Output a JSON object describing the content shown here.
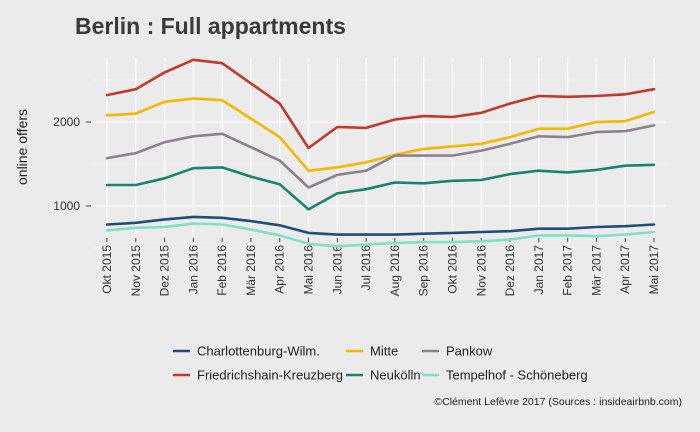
{
  "chart_data": {
    "type": "line",
    "title": "Berlin : Full appartments",
    "xlabel": "",
    "ylabel": "online offers",
    "ylim": [
      0,
      2800
    ],
    "yticks": [
      1000,
      2000
    ],
    "grid": true,
    "legend_position": "bottom",
    "categories": [
      "Okt 2015",
      "Nov 2015",
      "Dez 2015",
      "Jan 2016",
      "Feb 2016",
      "Mär 2016",
      "Apr 2016",
      "Mai 2016",
      "Jun 2016",
      "Jul 2016",
      "Aug 2016",
      "Sep 2016",
      "Okt 2016",
      "Nov 2016",
      "Dez 2016",
      "Jan 2017",
      "Feb 2017",
      "Mär 2017",
      "Apr 2017",
      "Mai 2017"
    ],
    "series": [
      {
        "name": "Charlottenburg-Wilm.",
        "color": "#1f4e79",
        "values": [
          780,
          800,
          840,
          870,
          860,
          820,
          770,
          680,
          660,
          660,
          660,
          670,
          680,
          690,
          700,
          730,
          730,
          750,
          760,
          780
        ]
      },
      {
        "name": "Mitte",
        "color": "#f5b800",
        "values": [
          2080,
          2100,
          2240,
          2280,
          2260,
          2040,
          1820,
          1420,
          1460,
          1520,
          1610,
          1680,
          1710,
          1740,
          1820,
          1920,
          1920,
          2000,
          2010,
          2120
        ]
      },
      {
        "name": "Pankow",
        "color": "#8d8190",
        "values": [
          1570,
          1630,
          1760,
          1830,
          1860,
          1700,
          1540,
          1220,
          1370,
          1420,
          1600,
          1600,
          1600,
          1660,
          1740,
          1830,
          1820,
          1880,
          1890,
          1960
        ]
      },
      {
        "name": "Friedrichshain-Kreuzberg",
        "color": "#c0392b",
        "values": [
          2320,
          2390,
          2590,
          2740,
          2700,
          2460,
          2220,
          1690,
          1940,
          1930,
          2030,
          2070,
          2060,
          2110,
          2220,
          2310,
          2300,
          2310,
          2330,
          2390
        ]
      },
      {
        "name": "Neukölln",
        "color": "#16856b",
        "values": [
          1250,
          1250,
          1330,
          1450,
          1460,
          1350,
          1260,
          960,
          1150,
          1200,
          1280,
          1270,
          1300,
          1310,
          1380,
          1420,
          1400,
          1430,
          1480,
          1490
        ]
      },
      {
        "name": "Tempelhof - Schöneberg",
        "color": "#7fe0c8",
        "values": [
          710,
          740,
          750,
          790,
          780,
          720,
          650,
          550,
          520,
          540,
          560,
          570,
          570,
          580,
          600,
          650,
          650,
          640,
          660,
          690
        ]
      }
    ]
  },
  "caption": "©Clément Lefèvre 2017 (Sources : insideairbnb.com)"
}
